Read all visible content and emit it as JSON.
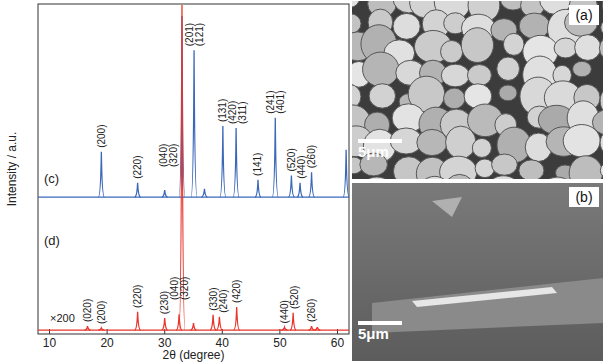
{
  "chart_data": {
    "type": "line",
    "xlabel": "2θ (degree)",
    "ylabel": "Intensity / a.u.",
    "xlim": [
      8,
      62
    ],
    "xticks": [
      10,
      20,
      30,
      40,
      50,
      60
    ],
    "ylim": [
      0,
      100
    ],
    "tick_labels": "x",
    "grid": false,
    "series": [
      {
        "name": "(c)",
        "color": "#3b68b8",
        "baseline": 41.5,
        "x": [
          19.0,
          25.3,
          30.0,
          33.0,
          35.1,
          36.9,
          40.1,
          42.4,
          46.2,
          49.2,
          52.0,
          53.5,
          55.5,
          61.5
        ],
        "values": [
          55.2,
          45.8,
          43.6,
          96.4,
          86.0,
          44.0,
          63.0,
          62.4,
          46.7,
          65.5,
          48.0,
          45.8,
          49.0,
          55.8
        ],
        "peak_labels": [
          [
            "(200)"
          ],
          [
            "(220)"
          ],
          null,
          [
            "(040)",
            "(320)"
          ],
          [
            "(201)",
            "(121)"
          ],
          null,
          [
            "(131)"
          ],
          [
            "(420)",
            "(311)"
          ],
          [
            "(141)"
          ],
          [
            "(241)",
            "(401)"
          ],
          [
            "(520)"
          ],
          [
            "(440)"
          ],
          [
            "(260)"
          ],
          null
        ]
      },
      {
        "name": "(d)",
        "color": "#e8342a",
        "baseline": 1.2,
        "annotation": "×200",
        "x": [
          16.6,
          19.0,
          25.3,
          30.0,
          32.5,
          33.0,
          35.0,
          38.4,
          39.5,
          42.5,
          50.8,
          52.3,
          55.5,
          56.5
        ],
        "values": [
          2.4,
          1.8,
          6.7,
          4.8,
          6.0,
          99.7,
          3.3,
          5.8,
          5.2,
          8.2,
          2.0,
          6.4,
          2.4,
          2.1
        ],
        "peak_labels": [
          [
            "(020)"
          ],
          [
            "(200)"
          ],
          [
            "(220)"
          ],
          [
            "(230)"
          ],
          null,
          [
            "(040)",
            "(320)"
          ],
          null,
          [
            "(330)"
          ],
          [
            "(240)"
          ],
          [
            "(420)"
          ],
          [
            "(440)"
          ],
          [
            "(520)"
          ],
          [
            "(260)"
          ],
          null
        ]
      }
    ]
  },
  "micrographs": [
    {
      "label": "(a)",
      "scale_bar": "5μm"
    },
    {
      "label": "(b)",
      "scale_bar": "5μm"
    }
  ]
}
